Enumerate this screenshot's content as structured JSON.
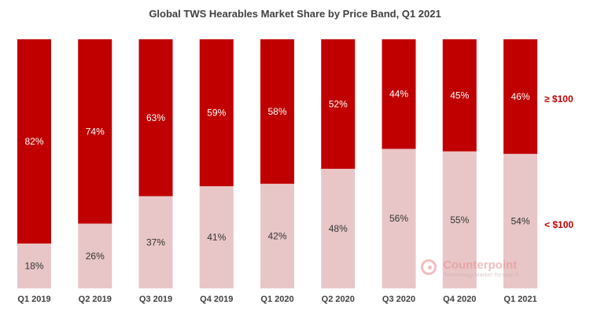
{
  "chart_data": {
    "type": "bar",
    "stacked": true,
    "title": "Global TWS Hearables Market Share by Price Band, Q1 2021",
    "categories": [
      "Q1 2019",
      "Q2 2019",
      "Q3 2019",
      "Q4 2019",
      "Q1 2020",
      "Q2 2020",
      "Q3 2020",
      "Q4 2020",
      "Q1 2021"
    ],
    "series": [
      {
        "name": "< $100",
        "color": "#e8c6c7",
        "values": [
          18,
          26,
          37,
          41,
          42,
          48,
          56,
          55,
          54
        ],
        "labels": [
          "18%",
          "26%",
          "37%",
          "41%",
          "42%",
          "48%",
          "56%",
          "55%",
          "54%"
        ]
      },
      {
        "name": "≥ $100",
        "color": "#c00000",
        "values": [
          82,
          74,
          63,
          59,
          58,
          52,
          44,
          45,
          46
        ],
        "labels": [
          "82%",
          "74%",
          "63%",
          "59%",
          "58%",
          "52%",
          "44%",
          "45%",
          "46%"
        ]
      }
    ],
    "ylim": [
      0,
      100
    ],
    "xlabel": "",
    "ylabel": "",
    "legend_position": "right"
  },
  "legend": {
    "high_label": "≥ $100",
    "low_label": "< $100"
  },
  "watermark": {
    "name": "Counterpoint",
    "tagline": "Technology Market Research"
  }
}
